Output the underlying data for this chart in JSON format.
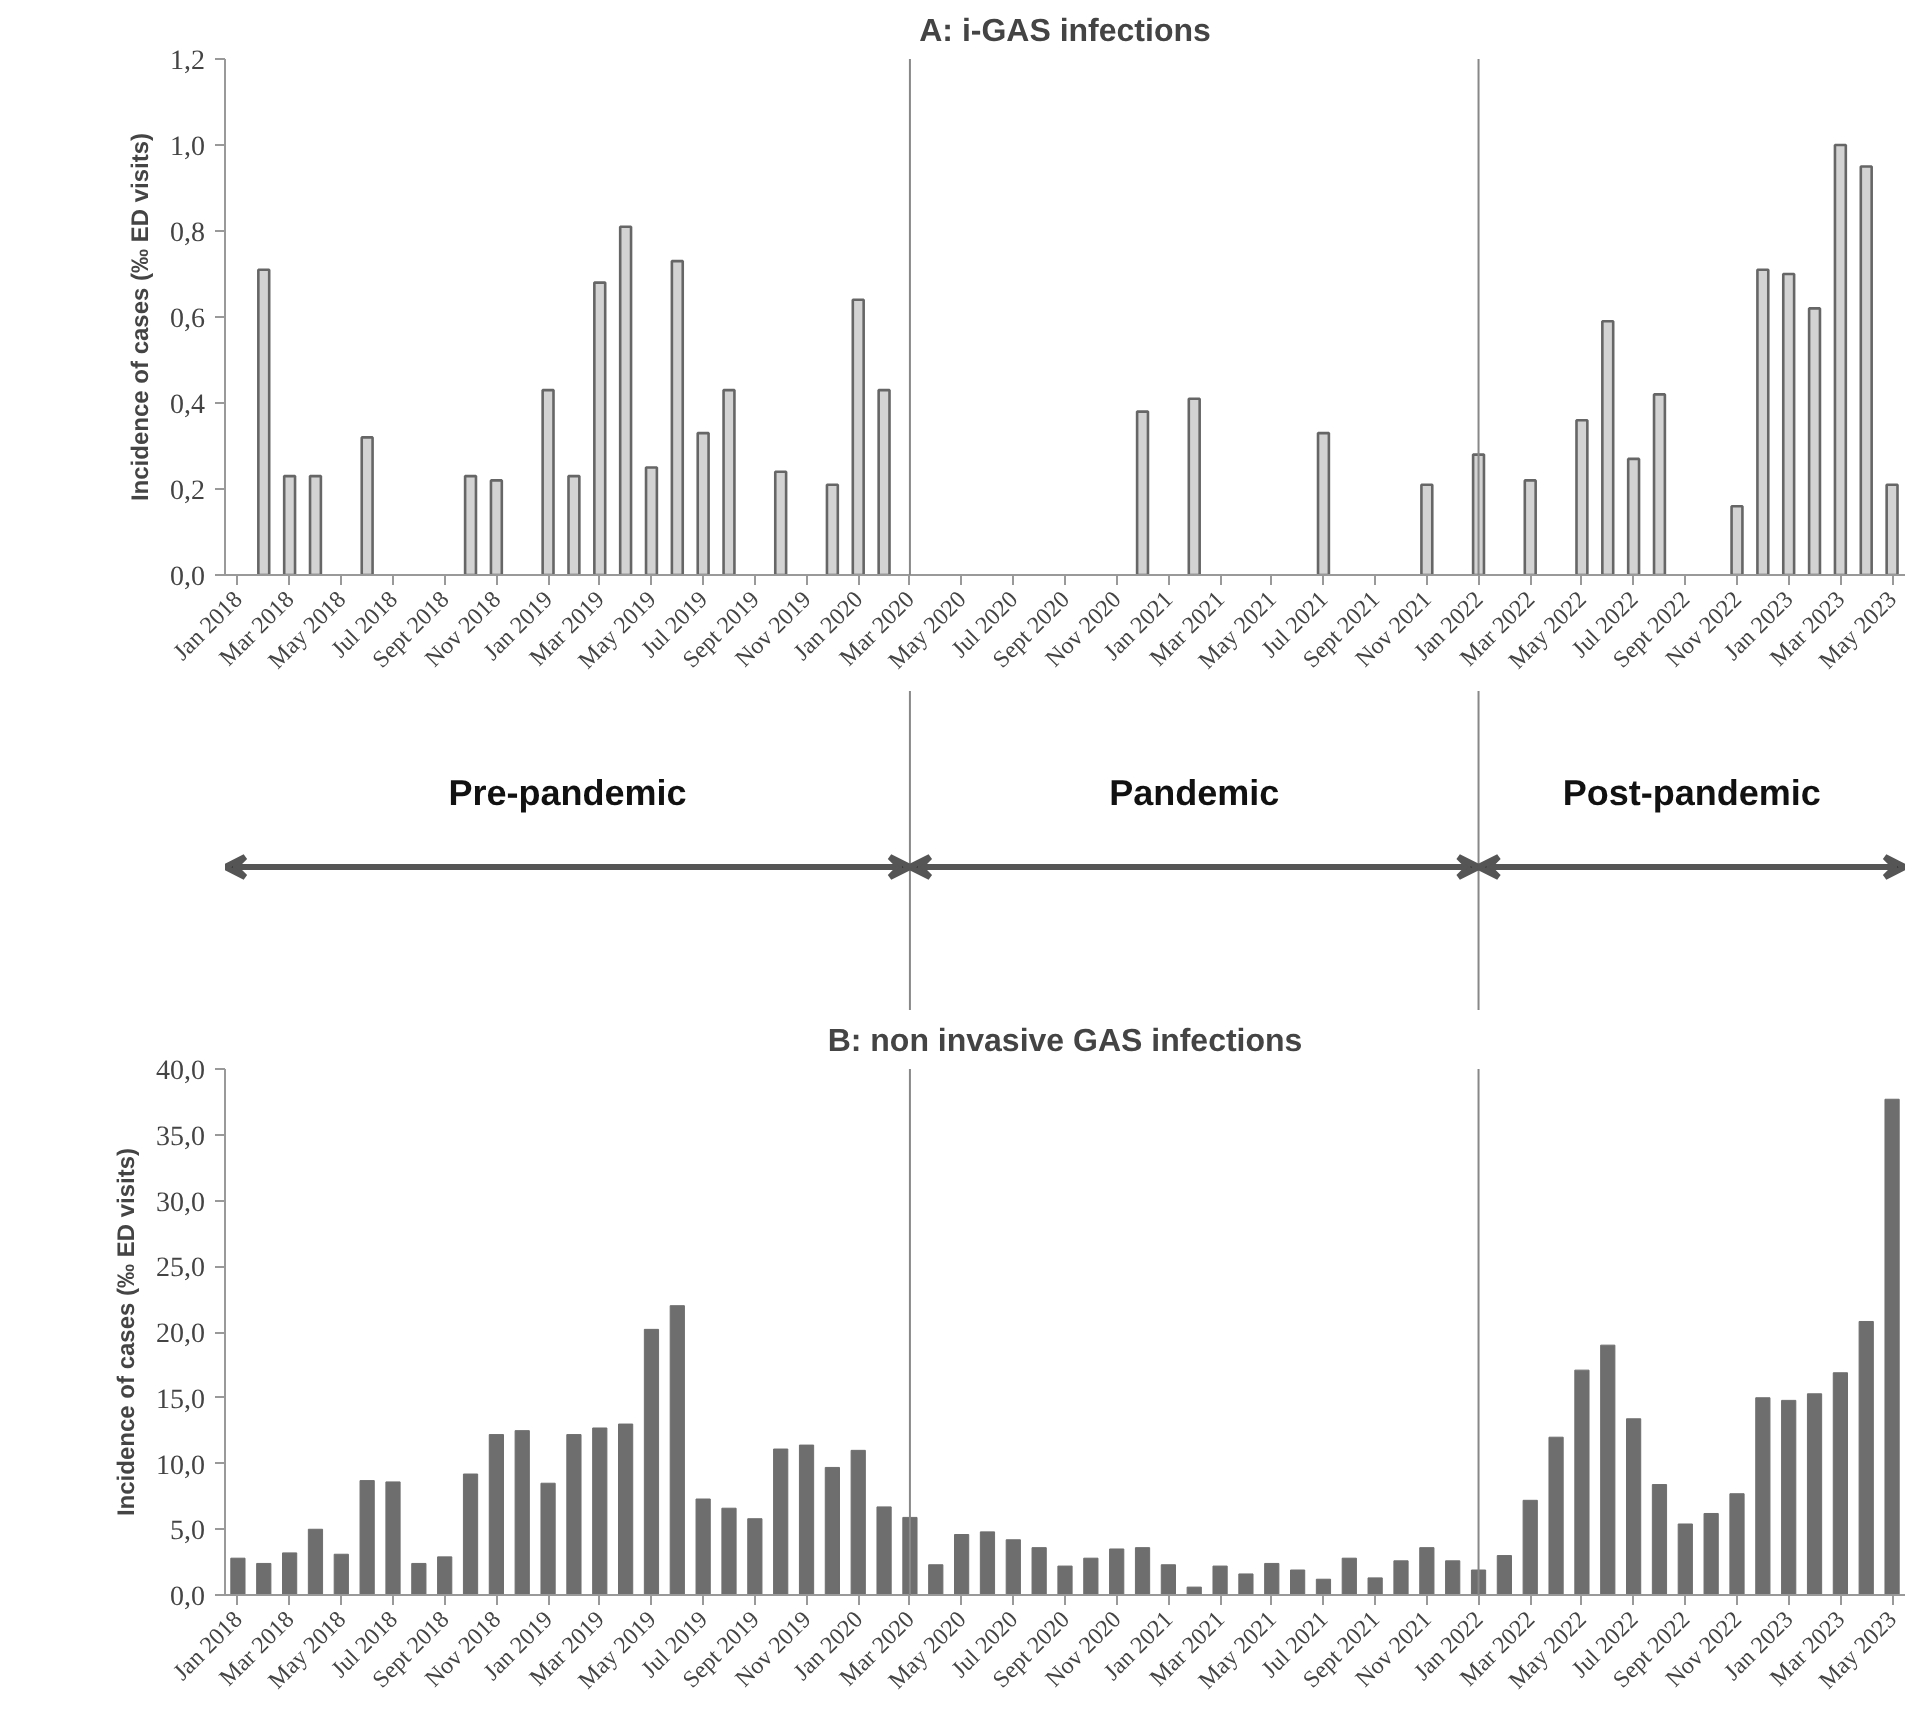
{
  "chart_data": [
    {
      "type": "bar",
      "title": "A: i-GAS infections",
      "ylabel": "Incidence of cases (‰ ED visits)",
      "categories": [
        "Jan 2018",
        null,
        "Mar 2018",
        null,
        "May 2018",
        null,
        "Jul 2018",
        null,
        "Sept 2018",
        null,
        "Nov 2018",
        null,
        "Jan 2019",
        null,
        "Mar 2019",
        null,
        "May 2019",
        null,
        "Jul 2019",
        null,
        "Sept 2019",
        null,
        "Nov 2019",
        null,
        "Jan 2020",
        null,
        "Mar 2020",
        null,
        "May 2020",
        null,
        "Jul 2020",
        null,
        "Sept 2020",
        null,
        "Nov 2020",
        null,
        "Jan 2021",
        null,
        "Mar 2021",
        null,
        "May 2021",
        null,
        "Jul 2021",
        null,
        "Sept 2021",
        null,
        "Nov 2021",
        null,
        "Jan 2022",
        null,
        "Mar 2022",
        null,
        "May 2022",
        null,
        "Jul 2022",
        null,
        "Sept 2022",
        null,
        "Nov 2022",
        null,
        "Jan 2023",
        null,
        "Mar 2023",
        null,
        "May 2023"
      ],
      "values": [
        null,
        0.71,
        0.23,
        0.23,
        null,
        0.32,
        null,
        null,
        null,
        0.23,
        0.22,
        null,
        0.43,
        0.23,
        0.68,
        0.81,
        0.25,
        0.73,
        0.33,
        0.43,
        null,
        0.24,
        null,
        0.21,
        0.64,
        0.43,
        null,
        null,
        null,
        null,
        null,
        null,
        null,
        null,
        null,
        0.38,
        null,
        0.41,
        null,
        null,
        null,
        null,
        0.33,
        null,
        null,
        null,
        0.21,
        null,
        0.28,
        null,
        0.22,
        null,
        0.36,
        0.59,
        0.27,
        0.42,
        null,
        null,
        0.16,
        0.71,
        0.7,
        0.62,
        1.0,
        0.95,
        0.21
      ],
      "color": "#d3d3d3",
      "ylim": [
        0,
        1.2
      ],
      "yticks": [
        {
          "value": 0,
          "label": "0,0"
        },
        {
          "value": 0.2,
          "label": "0,2"
        },
        {
          "value": 0.4,
          "label": "0,4"
        },
        {
          "value": 0.6,
          "label": "0,6"
        },
        {
          "value": 0.8,
          "label": "0,8"
        },
        {
          "value": 1.0,
          "label": "1,0"
        },
        {
          "value": 1.2,
          "label": "1,2"
        }
      ],
      "ref_lines": [
        {
          "axis": "x",
          "value": "Mar 2020",
          "color": "#888888"
        },
        {
          "axis": "x",
          "value": "Jan 2022",
          "color": "#888888"
        }
      ],
      "annotations": [
        "Pre-pandemic",
        "Pandemic",
        "Post-pandemic"
      ]
    },
    {
      "type": "bar",
      "title": "B: non invasive GAS infections",
      "ylabel": "Incidence of cases (‰ ED visits)",
      "categories": [
        "Jan 2018",
        null,
        "Mar 2018",
        null,
        "May 2018",
        null,
        "Jul 2018",
        null,
        "Sept 2018",
        null,
        "Nov 2018",
        null,
        "Jan 2019",
        null,
        "Mar 2019",
        null,
        "May 2019",
        null,
        "Jul 2019",
        null,
        "Sept 2019",
        null,
        "Nov 2019",
        null,
        "Jan 2020",
        null,
        "Mar 2020",
        null,
        "May 2020",
        null,
        "Jul 2020",
        null,
        "Sept 2020",
        null,
        "Nov 2020",
        null,
        "Jan 2021",
        null,
        "Mar 2021",
        null,
        "May 2021",
        null,
        "Jul 2021",
        null,
        "Sept 2021",
        null,
        "Nov 2021",
        null,
        "Jan 2022",
        null,
        "Mar 2022",
        null,
        "May 2022",
        null,
        "Jul 2022",
        null,
        "Sept 2022",
        null,
        "Nov 2022",
        null,
        "Jan 2023",
        null,
        "Mar 2023",
        null,
        "May 2023"
      ],
      "values": [
        2.8,
        2.4,
        3.2,
        5.0,
        3.1,
        8.7,
        8.6,
        2.4,
        2.9,
        9.2,
        12.2,
        12.5,
        8.5,
        12.2,
        12.7,
        13.0,
        20.2,
        22.0,
        7.3,
        6.6,
        5.8,
        11.1,
        11.4,
        9.7,
        11.0,
        6.7,
        5.9,
        2.3,
        4.6,
        4.8,
        4.2,
        3.6,
        2.2,
        2.8,
        3.5,
        3.6,
        2.3,
        0.6,
        2.2,
        1.6,
        2.4,
        1.9,
        1.2,
        2.8,
        1.3,
        2.6,
        3.6,
        2.6,
        1.9,
        3.0,
        7.2,
        12.0,
        17.1,
        19.0,
        13.4,
        8.4,
        5.4,
        6.2,
        7.7,
        15.0,
        14.8,
        15.3,
        16.9,
        20.8,
        37.7
      ],
      "color": "#6e6e6e",
      "ylim": [
        0,
        40
      ],
      "yticks": [
        {
          "value": 0,
          "label": "0,0"
        },
        {
          "value": 5,
          "label": "5,0"
        },
        {
          "value": 10,
          "label": "10,0"
        },
        {
          "value": 15,
          "label": "15,0"
        },
        {
          "value": 20,
          "label": "20,0"
        },
        {
          "value": 25,
          "label": "25,0"
        },
        {
          "value": 30,
          "label": "30,0"
        },
        {
          "value": 35,
          "label": "35,0"
        },
        {
          "value": 40,
          "label": "40,0"
        }
      ],
      "ref_lines": [
        {
          "axis": "x",
          "value": "Mar 2020",
          "color": "#888888"
        },
        {
          "axis": "x",
          "value": "Jan 2022",
          "color": "#888888"
        }
      ]
    }
  ]
}
